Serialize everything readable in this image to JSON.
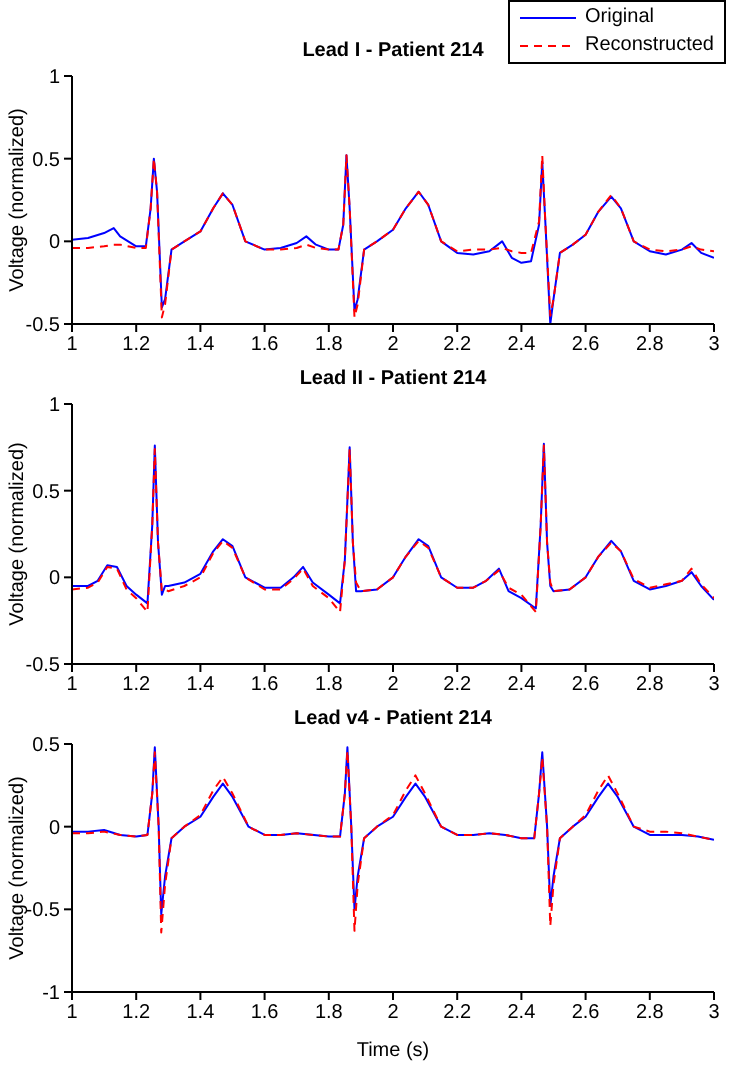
{
  "chart_data": [
    {
      "type": "line",
      "title": "Lead I - Patient 214",
      "ylabel": "Voltage (normalized)",
      "xlim": [
        1,
        3
      ],
      "xticks": [
        1,
        1.2,
        1.4,
        1.6,
        1.8,
        2,
        2.2,
        2.4,
        2.6,
        2.8,
        3
      ],
      "ylim": [
        -0.5,
        1
      ],
      "yticks": [
        -0.5,
        0,
        0.5,
        1
      ],
      "legend": "top right",
      "x": [
        1.0,
        1.05,
        1.1,
        1.13,
        1.15,
        1.2,
        1.23,
        1.245,
        1.255,
        1.265,
        1.28,
        1.29,
        1.31,
        1.35,
        1.4,
        1.44,
        1.47,
        1.5,
        1.54,
        1.6,
        1.65,
        1.7,
        1.73,
        1.76,
        1.8,
        1.83,
        1.845,
        1.855,
        1.865,
        1.88,
        1.89,
        1.91,
        1.95,
        2.0,
        2.04,
        2.08,
        2.11,
        2.15,
        2.2,
        2.25,
        2.3,
        2.34,
        2.37,
        2.4,
        2.43,
        2.455,
        2.465,
        2.475,
        2.49,
        2.5,
        2.52,
        2.56,
        2.6,
        2.64,
        2.68,
        2.71,
        2.75,
        2.8,
        2.85,
        2.9,
        2.93,
        2.96,
        3.0
      ],
      "series": [
        {
          "name": "Original",
          "color": "#0000ff",
          "line_style": "solid",
          "values": [
            0.01,
            0.02,
            0.05,
            0.08,
            0.03,
            -0.03,
            -0.03,
            0.2,
            0.5,
            0.3,
            -0.4,
            -0.35,
            -0.05,
            0.0,
            0.06,
            0.2,
            0.29,
            0.22,
            0.0,
            -0.05,
            -0.04,
            -0.01,
            0.03,
            -0.02,
            -0.05,
            -0.05,
            0.1,
            0.52,
            0.2,
            -0.42,
            -0.35,
            -0.05,
            0.0,
            0.07,
            0.2,
            0.3,
            0.22,
            0.0,
            -0.07,
            -0.08,
            -0.06,
            0.0,
            -0.1,
            -0.13,
            -0.12,
            0.1,
            0.48,
            0.1,
            -0.5,
            -0.35,
            -0.07,
            -0.02,
            0.04,
            0.18,
            0.27,
            0.2,
            0.0,
            -0.06,
            -0.08,
            -0.05,
            -0.01,
            -0.07,
            -0.1
          ]
        },
        {
          "name": "Reconstructed",
          "color": "#ff0000",
          "line_style": "dashed",
          "values": [
            -0.04,
            -0.04,
            -0.03,
            -0.02,
            -0.02,
            -0.04,
            -0.04,
            0.2,
            0.5,
            0.3,
            -0.46,
            -0.38,
            -0.05,
            0.0,
            0.06,
            0.2,
            0.29,
            0.22,
            0.0,
            -0.05,
            -0.05,
            -0.04,
            -0.02,
            -0.04,
            -0.05,
            -0.05,
            0.1,
            0.52,
            0.2,
            -0.46,
            -0.38,
            -0.05,
            0.0,
            0.07,
            0.2,
            0.3,
            0.22,
            0.0,
            -0.06,
            -0.05,
            -0.05,
            -0.04,
            -0.06,
            -0.07,
            -0.07,
            0.12,
            0.52,
            0.1,
            -0.45,
            -0.35,
            -0.07,
            -0.02,
            0.04,
            0.18,
            0.28,
            0.2,
            0.0,
            -0.05,
            -0.06,
            -0.05,
            -0.03,
            -0.05,
            -0.06
          ]
        }
      ]
    },
    {
      "type": "line",
      "title": "Lead II - Patient 214",
      "ylabel": "Voltage (normalized)",
      "xlim": [
        1,
        3
      ],
      "xticks": [
        1,
        1.2,
        1.4,
        1.6,
        1.8,
        2,
        2.2,
        2.4,
        2.6,
        2.8,
        3
      ],
      "ylim": [
        -0.5,
        1
      ],
      "yticks": [
        -0.5,
        0,
        0.5,
        1
      ],
      "x": [
        1.0,
        1.05,
        1.08,
        1.11,
        1.14,
        1.17,
        1.2,
        1.235,
        1.25,
        1.258,
        1.268,
        1.28,
        1.29,
        1.3,
        1.35,
        1.4,
        1.44,
        1.47,
        1.5,
        1.54,
        1.6,
        1.65,
        1.69,
        1.72,
        1.75,
        1.8,
        1.835,
        1.85,
        1.865,
        1.875,
        1.885,
        1.9,
        1.95,
        2.0,
        2.04,
        2.08,
        2.11,
        2.15,
        2.2,
        2.25,
        2.29,
        2.33,
        2.36,
        2.4,
        2.445,
        2.46,
        2.47,
        2.48,
        2.49,
        2.5,
        2.55,
        2.6,
        2.64,
        2.68,
        2.71,
        2.75,
        2.8,
        2.85,
        2.9,
        2.93,
        2.96,
        3.0
      ],
      "series": [
        {
          "color": "#0000ff",
          "line_style": "solid",
          "values": [
            -0.05,
            -0.05,
            -0.02,
            0.07,
            0.06,
            -0.05,
            -0.1,
            -0.15,
            0.3,
            0.76,
            0.2,
            -0.1,
            -0.05,
            -0.05,
            -0.03,
            0.02,
            0.15,
            0.22,
            0.18,
            0.0,
            -0.06,
            -0.06,
            0.0,
            0.06,
            -0.03,
            -0.1,
            -0.15,
            0.1,
            0.75,
            0.2,
            -0.08,
            -0.08,
            -0.07,
            0.0,
            0.12,
            0.22,
            0.18,
            0.0,
            -0.06,
            -0.06,
            -0.02,
            0.05,
            -0.08,
            -0.12,
            -0.18,
            0.3,
            0.77,
            0.2,
            -0.05,
            -0.08,
            -0.07,
            0.0,
            0.12,
            0.21,
            0.15,
            -0.02,
            -0.07,
            -0.05,
            -0.02,
            0.03,
            -0.05,
            -0.13
          ]
        },
        {
          "color": "#ff0000",
          "line_style": "dashed",
          "values": [
            -0.07,
            -0.06,
            -0.03,
            0.06,
            0.05,
            -0.07,
            -0.12,
            -0.2,
            0.3,
            0.74,
            0.2,
            -0.08,
            -0.07,
            -0.08,
            -0.05,
            0.0,
            0.14,
            0.21,
            0.17,
            0.0,
            -0.07,
            -0.07,
            -0.01,
            0.05,
            -0.05,
            -0.12,
            -0.2,
            0.1,
            0.74,
            0.2,
            -0.03,
            -0.08,
            -0.07,
            0.0,
            0.12,
            0.21,
            0.17,
            0.0,
            -0.06,
            -0.06,
            -0.02,
            0.04,
            -0.06,
            -0.1,
            -0.2,
            0.3,
            0.76,
            0.2,
            -0.03,
            -0.08,
            -0.07,
            0.0,
            0.12,
            0.2,
            0.15,
            -0.01,
            -0.06,
            -0.04,
            -0.02,
            0.05,
            -0.04,
            -0.12
          ]
        }
      ]
    },
    {
      "type": "line",
      "title": "Lead v4 - Patient 214",
      "xlabel": "Time (s)",
      "ylabel": "Voltage (normalized)",
      "xlim": [
        1,
        3
      ],
      "xticks": [
        1,
        1.2,
        1.4,
        1.6,
        1.8,
        2,
        2.2,
        2.4,
        2.6,
        2.8,
        3
      ],
      "ylim": [
        -1,
        0.5
      ],
      "yticks": [
        -1,
        -0.5,
        0,
        0.5
      ],
      "x": [
        1.0,
        1.05,
        1.1,
        1.15,
        1.2,
        1.235,
        1.25,
        1.258,
        1.27,
        1.278,
        1.29,
        1.31,
        1.35,
        1.4,
        1.44,
        1.47,
        1.5,
        1.55,
        1.6,
        1.65,
        1.7,
        1.8,
        1.835,
        1.85,
        1.858,
        1.87,
        1.88,
        1.89,
        1.91,
        1.95,
        2.0,
        2.04,
        2.07,
        2.1,
        2.15,
        2.2,
        2.25,
        2.3,
        2.35,
        2.4,
        2.44,
        2.455,
        2.465,
        2.48,
        2.49,
        2.5,
        2.52,
        2.56,
        2.6,
        2.64,
        2.67,
        2.7,
        2.75,
        2.8,
        2.85,
        2.9,
        2.95,
        3.0
      ],
      "series": [
        {
          "color": "#0000ff",
          "line_style": "solid",
          "values": [
            -0.03,
            -0.03,
            -0.02,
            -0.05,
            -0.06,
            -0.05,
            0.2,
            0.48,
            0.0,
            -0.53,
            -0.3,
            -0.07,
            0.0,
            0.06,
            0.18,
            0.26,
            0.18,
            0.0,
            -0.05,
            -0.05,
            -0.04,
            -0.06,
            -0.06,
            0.2,
            0.48,
            0.0,
            -0.5,
            -0.3,
            -0.07,
            0.0,
            0.06,
            0.18,
            0.26,
            0.18,
            0.0,
            -0.05,
            -0.05,
            -0.04,
            -0.05,
            -0.07,
            -0.07,
            0.2,
            0.45,
            0.0,
            -0.48,
            -0.3,
            -0.07,
            0.0,
            0.06,
            0.18,
            0.26,
            0.18,
            0.0,
            -0.05,
            -0.05,
            -0.05,
            -0.06,
            -0.08
          ]
        },
        {
          "color": "#ff0000",
          "line_style": "dashed",
          "values": [
            -0.04,
            -0.04,
            -0.03,
            -0.05,
            -0.06,
            -0.05,
            0.2,
            0.45,
            0.0,
            -0.64,
            -0.35,
            -0.07,
            0.0,
            0.07,
            0.22,
            0.3,
            0.2,
            0.0,
            -0.05,
            -0.05,
            -0.04,
            -0.06,
            -0.06,
            0.2,
            0.46,
            0.0,
            -0.63,
            -0.35,
            -0.07,
            0.0,
            0.07,
            0.22,
            0.31,
            0.2,
            0.0,
            -0.05,
            -0.05,
            -0.04,
            -0.05,
            -0.07,
            -0.07,
            0.2,
            0.42,
            0.0,
            -0.6,
            -0.35,
            -0.07,
            0.0,
            0.07,
            0.22,
            0.31,
            0.2,
            0.0,
            -0.03,
            -0.03,
            -0.04,
            -0.06,
            -0.08
          ]
        }
      ]
    }
  ]
}
